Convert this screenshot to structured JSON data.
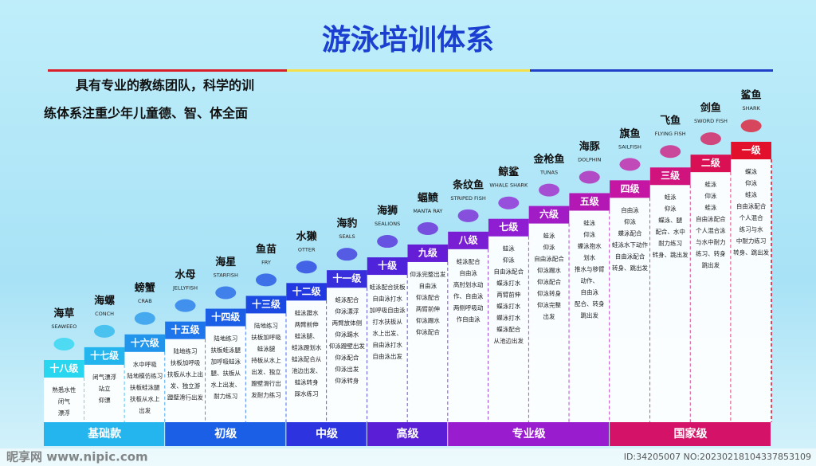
{
  "header": {
    "title": "游泳培训体系",
    "tagline": [
      "具有专业的教练团队，科学的训",
      "练体系注重少年儿童德、智、体全面"
    ]
  },
  "levels": [
    {
      "level": "十八级",
      "name": "海草",
      "en": "SEAWEEO",
      "desc": [
        "熟悉水性",
        "闭气",
        "漂浮"
      ]
    },
    {
      "level": "十七级",
      "name": "海螺",
      "en": "CONCH",
      "desc": [
        "闭气漂浮",
        "站立",
        "仰漂"
      ]
    },
    {
      "level": "十六级",
      "name": "螃蟹",
      "en": "CRAB",
      "desc": [
        "水中呼吸",
        "陆地模仿练习",
        "扶板蛙泳腿",
        "扶板从水上",
        "出发"
      ]
    },
    {
      "level": "十五级",
      "name": "水母",
      "en": "JELLYFISH",
      "desc": [
        "陆地练习",
        "扶板加呼吸",
        "扶板从水上出",
        "发、独立游",
        "蹬壁滑行出发"
      ]
    },
    {
      "level": "十四级",
      "name": "海星",
      "en": "STARFISH",
      "desc": [
        "陆地练习",
        "扶板蛙泳腿",
        "加呼吸蛙泳",
        "腿、扶板从",
        "水上出发、",
        "耐力练习"
      ]
    },
    {
      "level": "十三级",
      "name": "鱼苗",
      "en": "FRY",
      "desc": [
        "陆地练习",
        "扶板加呼吸",
        "蛙泳腿",
        "持板从水上",
        "出发、独立",
        "蹬壁滑行出",
        "发耐力练习"
      ]
    },
    {
      "level": "十二级",
      "name": "水獭",
      "en": "OTTER",
      "desc": [
        "蛙泳蹬水",
        "两臂前伸",
        "蛙泳腿、",
        "蛙泳蹬划水",
        "蛙泳配合从",
        "池边出发、",
        "蛙泳转身",
        "踩水练习"
      ]
    },
    {
      "level": "十一级",
      "name": "海豹",
      "en": "SEALS",
      "desc": [
        "蛙泳配合",
        "仰泳漂浮",
        "两臂放体侧",
        "仰泳踢水",
        "仰泳蹬壁出发",
        "仰泳配合",
        "仰泳出发",
        "仰泳转身"
      ]
    },
    {
      "level": "十级",
      "name": "海狮",
      "en": "SEALIONS",
      "desc": [
        "蛙泳配合抚板",
        "自由泳打水",
        "加呼吸自由泳",
        "打水扶板从",
        "水上出发、",
        "自由泳打水",
        "自由泳出发"
      ]
    },
    {
      "level": "九级",
      "name": "蝠鲼",
      "en": "MANTA RAY",
      "desc": [
        "仰泳完整出发",
        "自由泳",
        "仰泳配合",
        "两臂前伸",
        "仰泳踢水",
        "仰泳配合"
      ]
    },
    {
      "level": "八级",
      "name": "条纹鱼",
      "en": "STRIPED FISH",
      "desc": [
        "蛙泳配合",
        "自由泳",
        "高肘划水动",
        "作、自由泳",
        "两侧呼吸动",
        "作自由泳"
      ]
    },
    {
      "level": "七级",
      "name": "鲸鲨",
      "en": "WHALE SHARK",
      "desc": [
        "蛙泳",
        "仰泳",
        "自由泳配合",
        "蝶泳打水",
        "两臂前伸",
        "蝶泳打水",
        "蝶泳打水",
        "蝶泳配合",
        "从池边出发"
      ]
    },
    {
      "level": "六级",
      "name": "金枪鱼",
      "en": "TUNAS",
      "desc": [
        "蛙泳",
        "仰泳",
        "自由泳配合",
        "仰泳踢水",
        "仰泳配合",
        "仰泳转身",
        "仰泳完整",
        "出发"
      ]
    },
    {
      "level": "五级",
      "name": "海豚",
      "en": "DOLPHIN",
      "desc": [
        "蛙泳",
        "仰泳",
        "蝶泳抱水",
        "划水",
        "推水与移臂",
        "动作、",
        "自由泳",
        "配合、转身",
        "跳出发"
      ]
    },
    {
      "level": "四级",
      "name": "旗鱼",
      "en": "SAILFISH",
      "desc": [
        "自由泳",
        "仰泳",
        "蝶泳配合",
        "蛙泳水下动作",
        "自由泳配合",
        "转身、跳出发"
      ]
    },
    {
      "level": "三级",
      "name": "飞鱼",
      "en": "FLYING FISH",
      "desc": [
        "蛙泳",
        "仰泳",
        "蝶泳、腿",
        "配合、水中",
        "耐力练习",
        "转身、跳出发"
      ]
    },
    {
      "level": "二级",
      "name": "剑鱼",
      "en": "SWORD FISH",
      "desc": [
        "蛙泳",
        "仰泳",
        "蛙泳",
        "自由泳配合",
        "个人混合泳",
        "与水中耐力",
        "练习、转身",
        "跳出发"
      ]
    },
    {
      "level": "一级",
      "name": "鲨鱼",
      "en": "SHARK",
      "desc": [
        "蝶泳",
        "仰泳",
        "蛙泳",
        "自由泳配合",
        "个人混合",
        "练习与水",
        "中耐力练习",
        "转身、跳出发"
      ]
    }
  ],
  "stages": [
    {
      "label": "基础款",
      "span": 3
    },
    {
      "label": "初级",
      "span": 3
    },
    {
      "label": "中级",
      "span": 2
    },
    {
      "label": "高级",
      "span": 2
    },
    {
      "label": "专业级",
      "span": 4
    },
    {
      "label": "国家级",
      "span": 4
    }
  ],
  "watermark": {
    "site": "昵享网 www.nipic.com",
    "id": "ID:34205007 NO:20230218104337853109"
  }
}
